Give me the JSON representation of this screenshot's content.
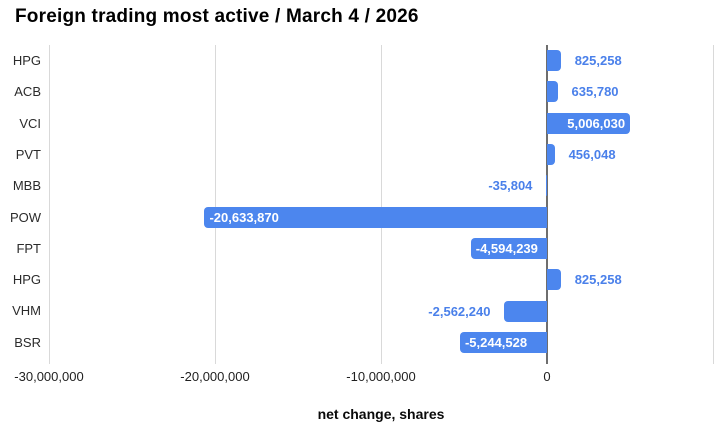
{
  "header": {
    "title": "Foreign trading most active / March 4 / 2026"
  },
  "chart_data": {
    "type": "bar",
    "orientation": "horizontal",
    "title": "Foreign trading most active / March 4 / 2026",
    "xlabel": "net change, shares",
    "ylabel": "",
    "categories": [
      "HPG",
      "ACB",
      "VCI",
      "PVT",
      "MBB",
      "POW",
      "FPT",
      "HPG",
      "VHM",
      "BSR"
    ],
    "values": [
      825258,
      635780,
      5006030,
      456048,
      -35804,
      -20633870,
      -4594239,
      825258,
      -2562240,
      -5244528
    ],
    "value_labels": [
      "825,258",
      "635,780",
      "5,006,030",
      "456,048",
      "-35,804",
      "-20,633,870",
      "-4,594,239",
      "825,258",
      "-2,562,240",
      "-5,244,528"
    ],
    "label_placement": [
      "outside",
      "outside",
      "inside",
      "outside",
      "outside",
      "inside",
      "inside",
      "outside",
      "outside",
      "inside"
    ],
    "xlim": [
      -30000000,
      10000000
    ],
    "gridlines": [
      -30000000,
      -20000000,
      -10000000,
      0,
      10000000
    ],
    "xticks": [
      {
        "value": -30000000,
        "label": "-30,000,000"
      },
      {
        "value": -20000000,
        "label": "-20,000,000"
      },
      {
        "value": -10000000,
        "label": "-10,000,000"
      },
      {
        "value": 0,
        "label": "0"
      }
    ],
    "grid": true,
    "legend": "none",
    "colors": {
      "bar": "#4c86ee",
      "label_inside": "#ffffff",
      "label_outside": "#4a80ea",
      "zero_line": "#6e6e6e",
      "gridline": "#d9d9d9",
      "tick_text": "#1f1f1f"
    }
  }
}
